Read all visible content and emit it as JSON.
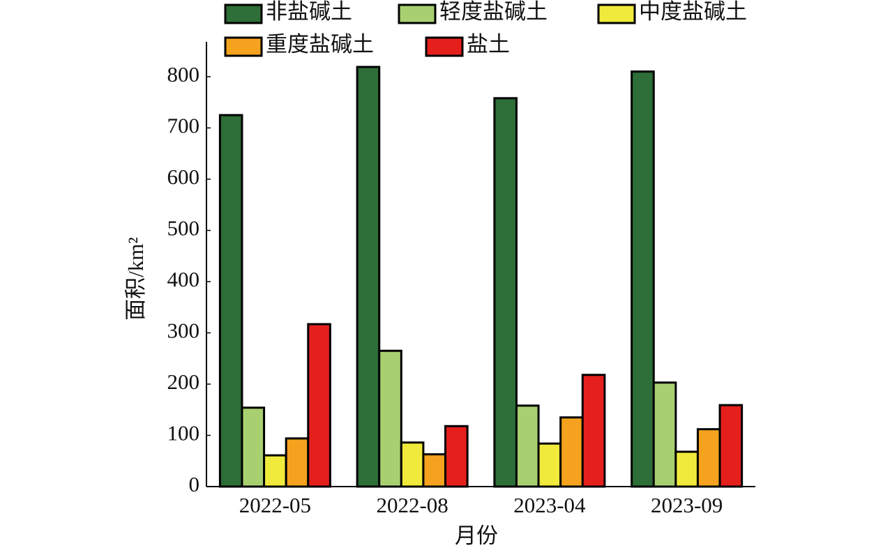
{
  "chart_data": {
    "type": "bar",
    "categories": [
      "2022-05",
      "2022-08",
      "2023-04",
      "2023-09"
    ],
    "series": [
      {
        "name": "非盐碱土",
        "color": "#2e6e38",
        "values": [
          725,
          819,
          758,
          810
        ]
      },
      {
        "name": "轻度盐碱土",
        "color": "#a8d070",
        "values": [
          154,
          265,
          158,
          203
        ]
      },
      {
        "name": "中度盐碱土",
        "color": "#f0ea3c",
        "values": [
          61,
          86,
          84,
          68
        ]
      },
      {
        "name": "重度盐碱土",
        "color": "#f5a21e",
        "values": [
          94,
          63,
          135,
          112
        ]
      },
      {
        "name": "盐土",
        "color": "#e5201c",
        "values": [
          317,
          118,
          218,
          159
        ]
      }
    ],
    "xlabel": "月份",
    "ylabel": "面积/km²",
    "ylim": [
      0,
      868
    ],
    "yticks": [
      0,
      100,
      200,
      300,
      400,
      500,
      600,
      700,
      800
    ]
  }
}
